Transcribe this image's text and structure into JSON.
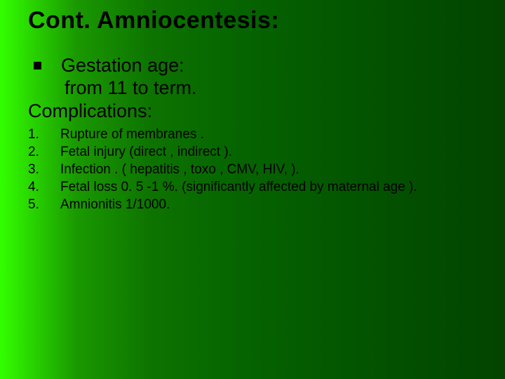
{
  "slide": {
    "title": "Cont. Amniocentesis:",
    "background_gradient": {
      "direction": "to right",
      "stops": [
        "#33ff00",
        "#1a9900",
        "#0d7300",
        "#066600",
        "#035500",
        "#024400"
      ]
    },
    "text_color": "#000000",
    "title_fontsize": 34,
    "body_fontsize": 27,
    "list_fontsize": 19,
    "bullet": {
      "gestation_label": "Gestation age:",
      "gestation_value": "from 11 to term."
    },
    "complications_label": "Complications:",
    "complications": [
      {
        "num": "1.",
        "text": "Rupture of membranes ."
      },
      {
        "num": "2.",
        "text": "Fetal injury (direct , indirect )."
      },
      {
        "num": "3.",
        "text": "Infection . ( hepatitis , toxo , CMV, HIV, )."
      },
      {
        "num": "4.",
        "text": "Fetal loss  0. 5 -1 %. (significantly affected by maternal age )."
      },
      {
        "num": "5.",
        "text": "Amnionitis 1/1000."
      }
    ]
  }
}
